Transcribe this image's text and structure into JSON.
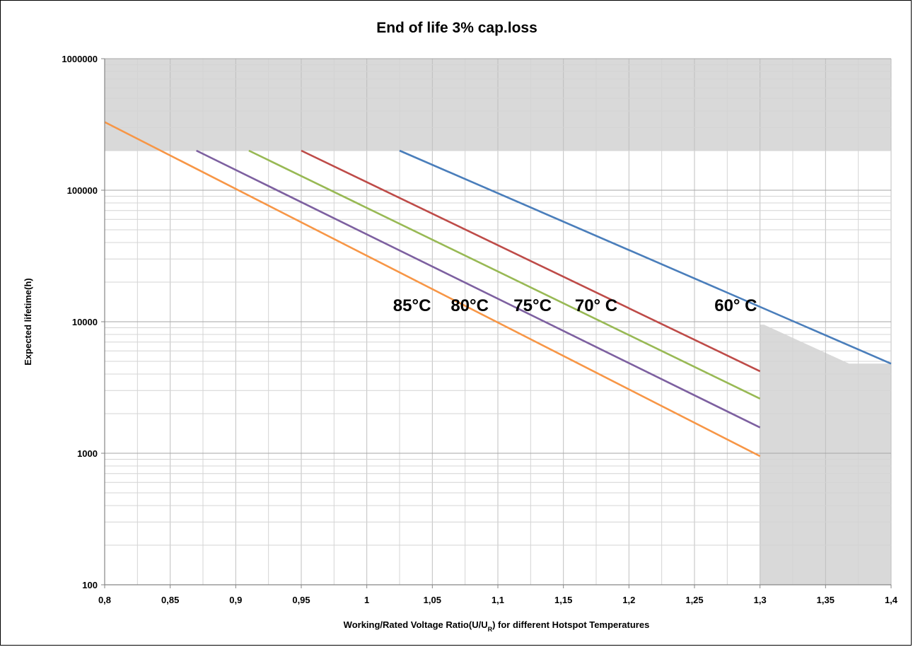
{
  "chart_data": {
    "type": "line",
    "title": "End of life 3% cap.loss",
    "xlabel": "Working/Rated Voltage Ratio(U/U",
    "xlabel_sub": "R",
    "xlabel_suffix": ") for different Hotspot Temperatures",
    "ylabel": "Expected lifetime(h)",
    "xlim": [
      0.8,
      1.4
    ],
    "ylim": [
      100,
      1000000
    ],
    "yscale": "log",
    "grid": true,
    "x_ticks": [
      0.8,
      0.85,
      0.9,
      0.95,
      1,
      1.05,
      1.1,
      1.15,
      1.2,
      1.25,
      1.3,
      1.35,
      1.4
    ],
    "x_tick_labels": [
      "0,8",
      "0,85",
      "0,9",
      "0,95",
      "1",
      "1,05",
      "1,1",
      "1,15",
      "1,2",
      "1,25",
      "1,3",
      "1,35",
      "1,4"
    ],
    "y_ticks": [
      100,
      1000,
      10000,
      100000,
      1000000
    ],
    "y_tick_labels": [
      "100",
      "1000",
      "10000",
      "100000",
      "1000000"
    ],
    "series": [
      {
        "name": "60° C",
        "color": "#4a7ebb",
        "x": [
          1.025,
          1.4
        ],
        "y": [
          200000,
          4800
        ]
      },
      {
        "name": "70° C",
        "color": "#be4b48",
        "x": [
          0.95,
          1.3
        ],
        "y": [
          200000,
          4200
        ]
      },
      {
        "name": "75°C",
        "color": "#98b954",
        "x": [
          0.91,
          1.3
        ],
        "y": [
          200000,
          2600
        ]
      },
      {
        "name": "80°C",
        "color": "#7d60a0",
        "x": [
          0.87,
          1.3
        ],
        "y": [
          200000,
          1570
        ]
      },
      {
        "name": "85°C",
        "color": "#f79646",
        "x": [
          0.8,
          1.3
        ],
        "y": [
          330000,
          950
        ]
      }
    ],
    "annotations": [
      {
        "text": "85°C",
        "x": 1.0345,
        "y": 13300
      },
      {
        "text": "80°C",
        "x": 1.0785,
        "y": 13300
      },
      {
        "text": "75°C",
        "x": 1.1265,
        "y": 13300
      },
      {
        "text": "70° C",
        "x": 1.175,
        "y": 13300
      },
      {
        "text": "60° C",
        "x": 1.2815,
        "y": 13300
      }
    ],
    "shaded_regions": [
      {
        "x": [
          0.8,
          1.4,
          1.4,
          0.8
        ],
        "y": [
          1000000,
          1000000,
          200000,
          200000
        ],
        "color": "#d9d9d9"
      },
      {
        "x": [
          1.3,
          1.303,
          1.368,
          1.4,
          1.4,
          1.3
        ],
        "y": [
          9500,
          9500,
          4800,
          4800,
          100,
          100
        ],
        "color": "#d9d9d9"
      }
    ]
  }
}
